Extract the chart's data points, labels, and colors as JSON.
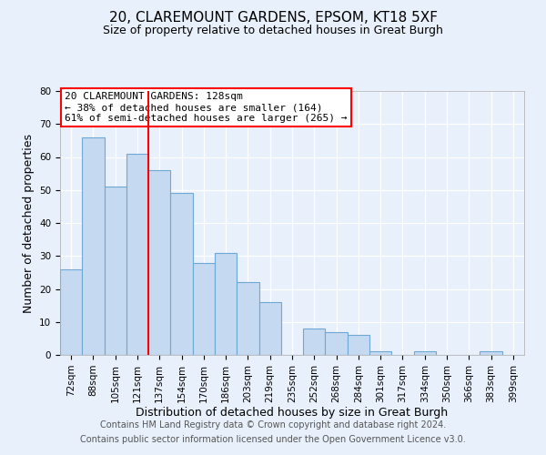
{
  "title": "20, CLAREMOUNT GARDENS, EPSOM, KT18 5XF",
  "subtitle": "Size of property relative to detached houses in Great Burgh",
  "xlabel": "Distribution of detached houses by size in Great Burgh",
  "ylabel": "Number of detached properties",
  "footnote1": "Contains HM Land Registry data © Crown copyright and database right 2024.",
  "footnote2": "Contains public sector information licensed under the Open Government Licence v3.0.",
  "bin_labels": [
    "72sqm",
    "88sqm",
    "105sqm",
    "121sqm",
    "137sqm",
    "154sqm",
    "170sqm",
    "186sqm",
    "203sqm",
    "219sqm",
    "235sqm",
    "252sqm",
    "268sqm",
    "284sqm",
    "301sqm",
    "317sqm",
    "334sqm",
    "350sqm",
    "366sqm",
    "383sqm",
    "399sqm"
  ],
  "bar_values": [
    26,
    66,
    51,
    61,
    56,
    49,
    28,
    31,
    22,
    16,
    0,
    8,
    7,
    6,
    1,
    0,
    1,
    0,
    0,
    1,
    0
  ],
  "bar_color": "#c5d9f0",
  "bar_edge_color": "#6fa8d5",
  "background_color": "#e8f0fb",
  "grid_color": "#ffffff",
  "red_line_x": 3.5,
  "annotation_line1": "20 CLAREMOUNT GARDENS: 128sqm",
  "annotation_line2": "← 38% of detached houses are smaller (164)",
  "annotation_line3": "61% of semi-detached houses are larger (265) →",
  "ylim": [
    0,
    80
  ],
  "yticks": [
    0,
    10,
    20,
    30,
    40,
    50,
    60,
    70,
    80
  ],
  "title_fontsize": 11,
  "subtitle_fontsize": 9,
  "axis_label_fontsize": 9,
  "tick_fontsize": 7.5,
  "annotation_fontsize": 8,
  "footnote_fontsize": 7
}
